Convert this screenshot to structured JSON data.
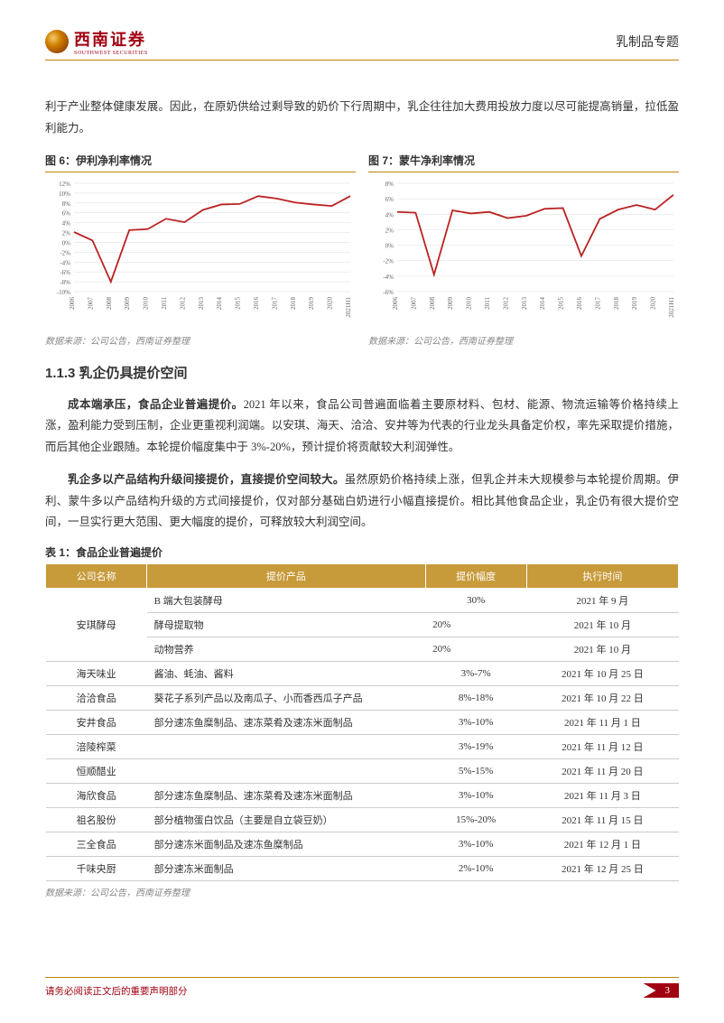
{
  "header": {
    "brand_cn": "西南证券",
    "brand_en": "SOUTHWEST SECURITIES",
    "topic": "乳制品专题"
  },
  "intro_text": "利于产业整体健康发展。因此，在原奶供给过剩导致的奶价下行周期中，乳企往往加大费用投放力度以尽可能提高销量，拉低盈利能力。",
  "chart6": {
    "title": "图 6：伊利净利率情况",
    "years": [
      "2006",
      "2007",
      "2008",
      "2009",
      "2010",
      "2011",
      "2012",
      "2013",
      "2014",
      "2015",
      "2016",
      "2017",
      "2018",
      "2019",
      "2020",
      "2021H1"
    ],
    "values": [
      2.1,
      0.4,
      -8.0,
      2.5,
      2.7,
      4.8,
      4.1,
      6.6,
      7.7,
      7.8,
      9.4,
      8.9,
      8.1,
      7.7,
      7.4,
      9.4
    ],
    "ymin": -10,
    "ymax": 12,
    "ystep": 2,
    "line_color": "#b22",
    "grid_color": "#ddd",
    "axis_fontsize": 7,
    "source": "数据来源：公司公告，西南证券整理"
  },
  "chart7": {
    "title": "图 7：蒙牛净利率情况",
    "years": [
      "2006",
      "2007",
      "2008",
      "2009",
      "2010",
      "2011",
      "2012",
      "2013",
      "2014",
      "2015",
      "2016",
      "2017",
      "2018",
      "2019",
      "2020",
      "2021H1"
    ],
    "values": [
      4.3,
      4.2,
      -3.8,
      4.5,
      4.1,
      4.3,
      3.5,
      3.8,
      4.7,
      4.8,
      -1.4,
      3.4,
      4.6,
      5.2,
      4.6,
      6.5
    ],
    "ymin": -6,
    "ymax": 8,
    "ystep": 2,
    "line_color": "#b22",
    "grid_color": "#ddd",
    "axis_fontsize": 7,
    "source": "数据来源：公司公告，西南证券整理"
  },
  "section_heading": "1.1.3 乳企仍具提价空间",
  "para1_bold": "成本端承压，食品企业普遍提价。",
  "para1_rest": "2021 年以来，食品公司普遍面临着主要原材料、包材、能源、物流运输等价格持续上涨，盈利能力受到压制，企业更重视利润端。以安琪、海天、洽洽、安井等为代表的行业龙头具备定价权，率先采取提价措施，而后其他企业跟随。本轮提价幅度集中于 3%-20%，预计提价将贡献较大利润弹性。",
  "para2_bold": "乳企多以产品结构升级间接提价，直接提价空间较大。",
  "para2_rest": "虽然原奶价格持续上涨，但乳企并未大规模参与本轮提价周期。伊利、蒙牛多以产品结构升级的方式间接提价，仅对部分基础白奶进行小幅直接提价。相比其他食品企业，乳企仍有很大提价空间，一旦实行更大范围、更大幅度的提价，可释放较大利润空间。",
  "table": {
    "title": "表 1：食品企业普遍提价",
    "headers": [
      "公司名称",
      "提价产品",
      "提价幅度",
      "执行时间"
    ],
    "rows": [
      {
        "company": "安琪酵母",
        "rowspan": 3,
        "product": "B 端大包装酵母",
        "range": "30%",
        "date": "2021 年 9 月"
      },
      {
        "company": "",
        "product": "酵母提取物",
        "range": "20%",
        "date": "2021 年 10 月"
      },
      {
        "company": "",
        "product": "动物营养",
        "range": "20%",
        "date": "2021 年 10 月"
      },
      {
        "company": "海天味业",
        "product": "酱油、蚝油、酱料",
        "range": "3%-7%",
        "date": "2021 年 10 月 25 日"
      },
      {
        "company": "洽洽食品",
        "product": "葵花子系列产品以及南瓜子、小而香西瓜子产品",
        "range": "8%-18%",
        "date": "2021 年 10 月 22 日"
      },
      {
        "company": "安井食品",
        "product": "部分速冻鱼糜制品、速冻菜肴及速冻米面制品",
        "range": "3%-10%",
        "date": "2021 年 11 月 1 日"
      },
      {
        "company": "涪陵榨菜",
        "product": "",
        "range": "3%-19%",
        "date": "2021 年 11 月 12 日"
      },
      {
        "company": "恒顺醋业",
        "product": "",
        "range": "5%-15%",
        "date": "2021 年 11 月 20 日"
      },
      {
        "company": "海欣食品",
        "product": "部分速冻鱼糜制品、速冻菜肴及速冻米面制品",
        "range": "3%-10%",
        "date": "2021 年 11 月 3 日"
      },
      {
        "company": "祖名股份",
        "product": "部分植物蛋白饮品（主要是自立袋豆奶）",
        "range": "15%-20%",
        "date": "2021 年 11 月 15 日"
      },
      {
        "company": "三全食品",
        "product": "部分速冻米面制品及速冻鱼糜制品",
        "range": "3%-10%",
        "date": "2021 年 12 月 1 日"
      },
      {
        "company": "千味央厨",
        "product": "部分速冻米面制品",
        "range": "2%-10%",
        "date": "2021 年 12 月 25 日"
      }
    ],
    "source": "数据来源：公司公告，西南证券整理"
  },
  "footer": {
    "disclaimer": "请务必阅读正文后的重要声明部分",
    "page": "3"
  }
}
